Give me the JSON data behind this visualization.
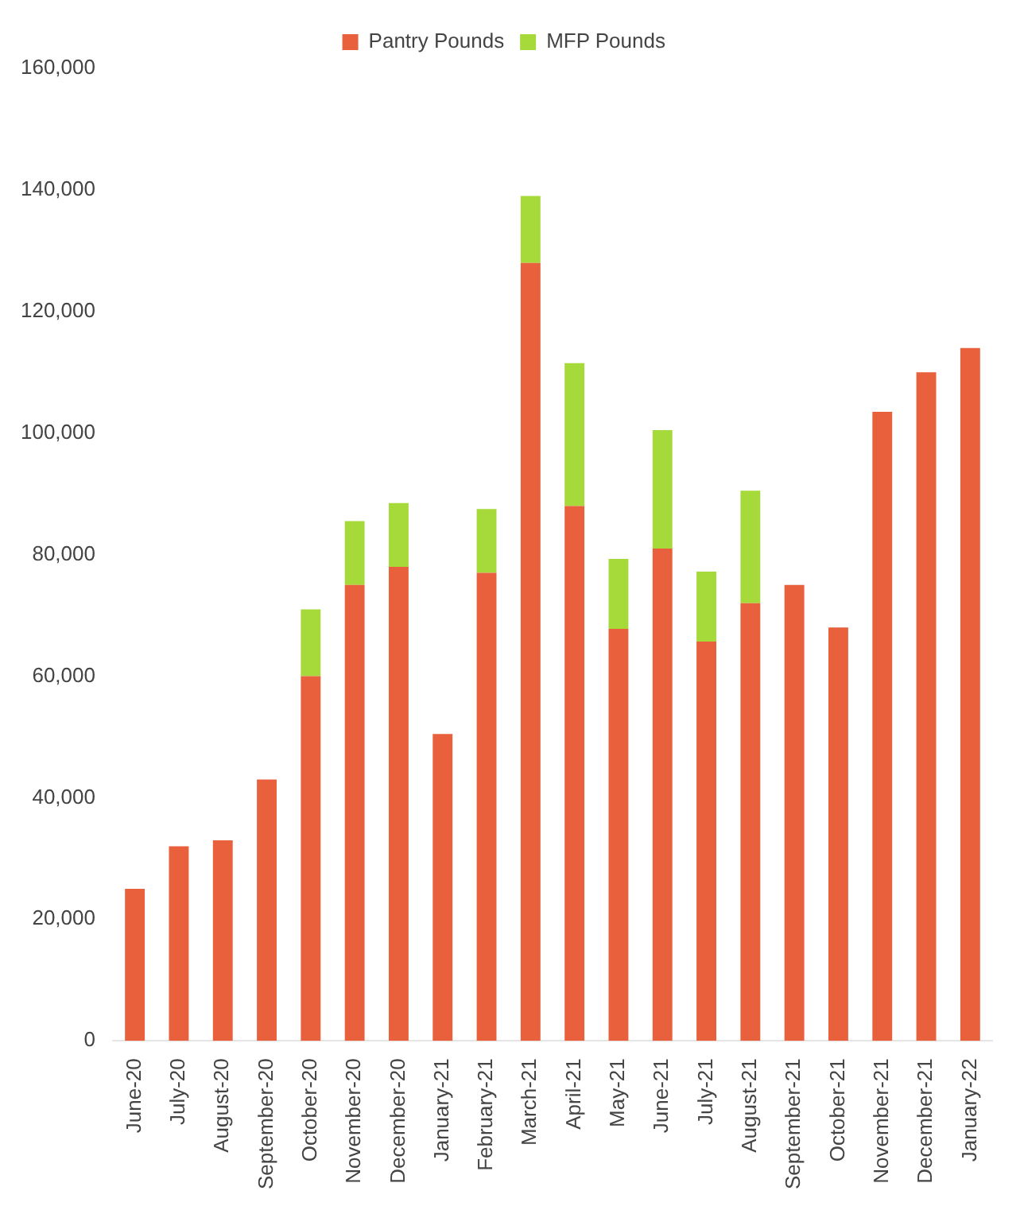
{
  "chart_data": {
    "type": "bar",
    "stacked": true,
    "legend": "top",
    "grid": false,
    "categories": [
      "June-20",
      "July-20",
      "August-20",
      "September-20",
      "October-20",
      "November-20",
      "December-20",
      "January-21",
      "February-21",
      "March-21",
      "April-21",
      "May-21",
      "June-21",
      "July-21",
      "August-21",
      "September-21",
      "October-21",
      "November-21",
      "December-21",
      "January-22"
    ],
    "series": [
      {
        "name": "Pantry Pounds",
        "color": "#e8603c",
        "values": [
          25000,
          32000,
          33000,
          43000,
          60000,
          75000,
          78000,
          50500,
          77000,
          128000,
          88000,
          67800,
          81000,
          65700,
          72000,
          75000,
          68000,
          103500,
          110000,
          114000
        ]
      },
      {
        "name": "MFP Pounds",
        "color": "#a6d93a",
        "values": [
          null,
          null,
          null,
          null,
          11000,
          10500,
          10500,
          null,
          10500,
          11000,
          23500,
          11500,
          19500,
          11500,
          18500,
          null,
          null,
          null,
          null,
          null
        ]
      }
    ],
    "ylim": [
      0,
      160000
    ],
    "yticks": [
      0,
      {
        "value": 20000,
        "label": "20,000"
      },
      {
        "value": 40000,
        "label": "40,000"
      },
      {
        "value": 60000,
        "label": "60,000"
      },
      {
        "value": 80000,
        "label": "80,000"
      },
      {
        "value": 100000,
        "label": "100,000"
      },
      {
        "value": 120000,
        "label": "120,000"
      },
      {
        "value": 140000,
        "label": "140,000"
      },
      {
        "value": 160000,
        "label": "160,000"
      }
    ]
  }
}
